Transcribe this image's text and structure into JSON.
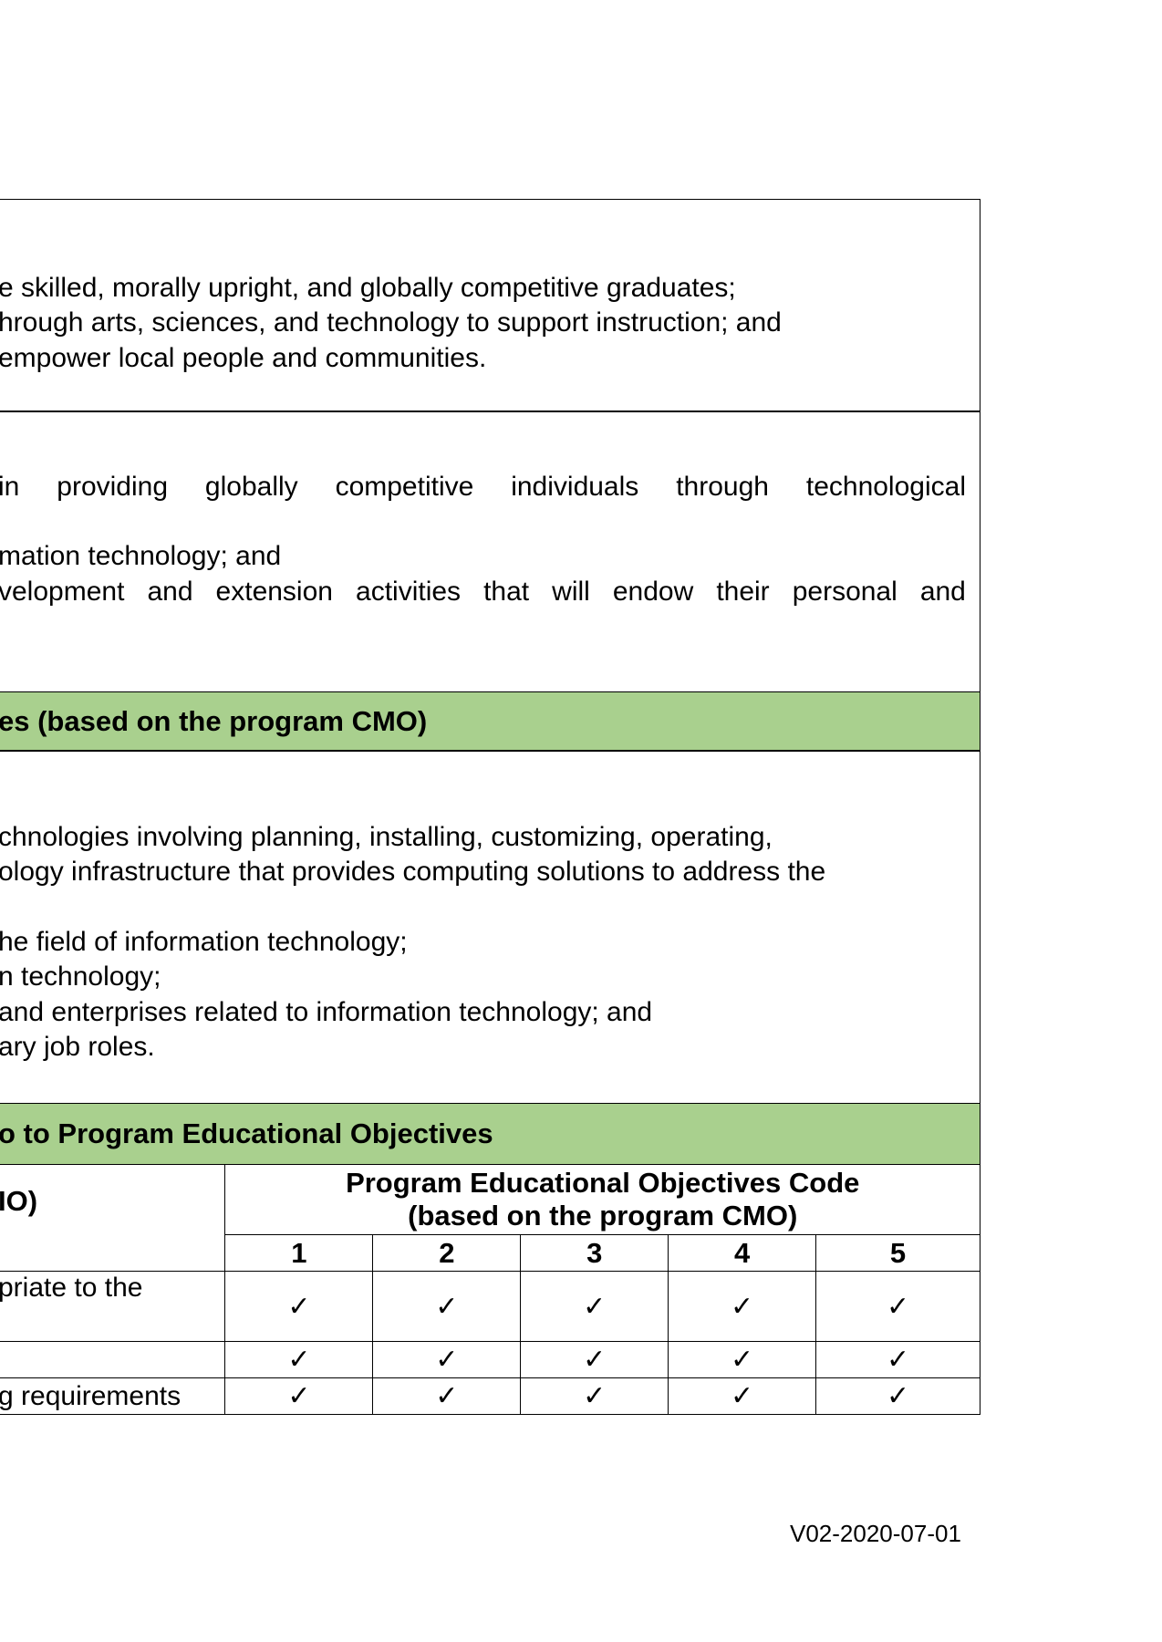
{
  "vision_mission": {
    "lines": [
      "e skilled, morally upright, and globally competitive graduates;",
      "hrough arts, sciences, and technology to support instruction; and",
      "empower local people and communities."
    ]
  },
  "goals": {
    "line1_words": [
      "in",
      "providing",
      "globally",
      "competitive",
      "individuals",
      "through",
      "technological"
    ],
    "line2": "mation technology; and",
    "line3_words": [
      "velopment",
      "and",
      "extension",
      "activities",
      "that",
      "will",
      "endow",
      "their",
      "personal",
      "and"
    ]
  },
  "peo_header": "es (based on the program CMO)",
  "peo": {
    "lines": [
      "chnologies involving planning, installing, customizing, operating,",
      "ology infrastructure that provides computing solutions to address the",
      "",
      "he field of information technology;",
      "n technology;",
      "and enterprises related to information technology; and",
      "ary job roles."
    ]
  },
  "mapping_header": "o to Program Educational Objectives",
  "mapping": {
    "left_header": "IO)",
    "peo_code_header_line1": "Program Educational Objectives Code",
    "peo_code_header_line2": "(based on the program CMO)",
    "codes": [
      "1",
      "2",
      "3",
      "4",
      "5"
    ],
    "rows": [
      {
        "label": "priate to the",
        "marks": [
          "✓",
          "✓",
          "✓",
          "✓",
          "✓"
        ]
      },
      {
        "label": "",
        "marks": [
          "✓",
          "✓",
          "✓",
          "✓",
          "✓"
        ]
      },
      {
        "label": "g requirements",
        "marks": [
          "✓",
          "✓",
          "✓",
          "✓",
          "✓"
        ]
      }
    ]
  },
  "footer": "V02-2020-07-01"
}
